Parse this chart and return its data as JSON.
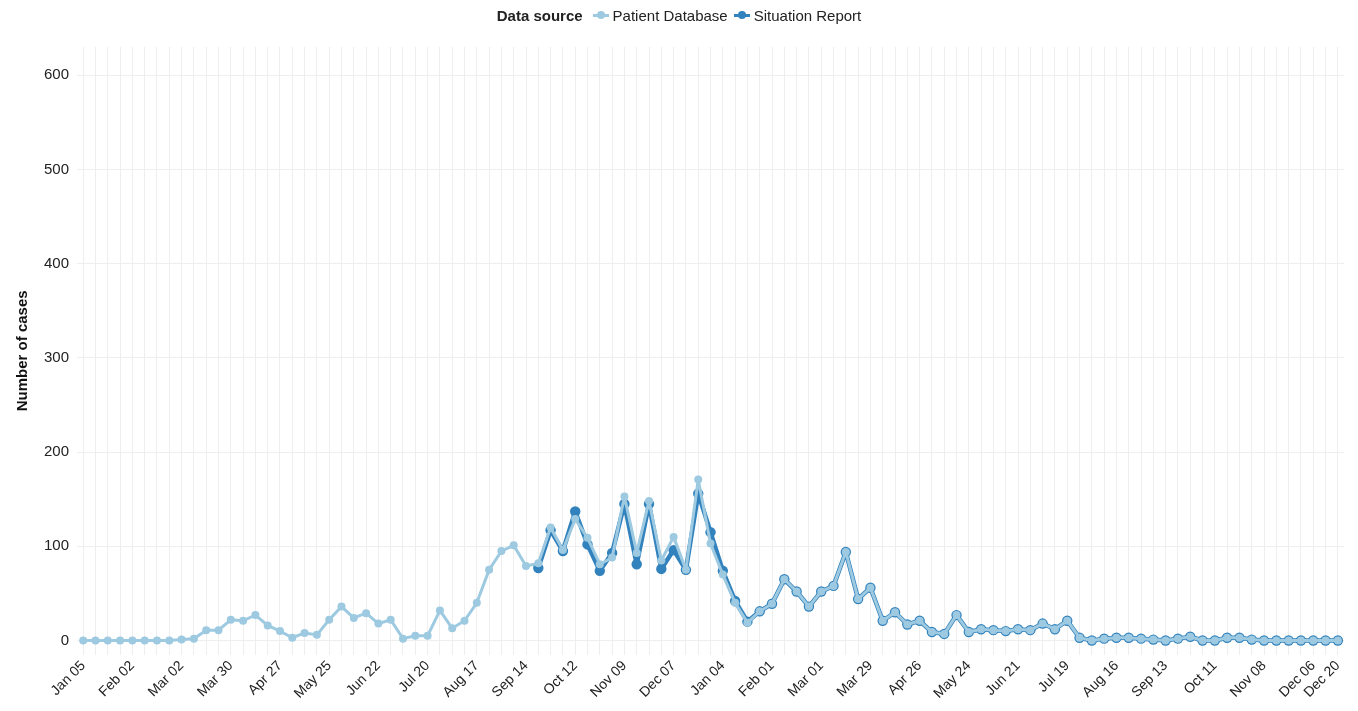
{
  "chart_data": {
    "type": "line",
    "ylabel": "Number of cases",
    "legend_title": "Data source",
    "legend": "top",
    "grid": true,
    "marker": "circle",
    "line_style": "solid",
    "categories": [
      "Jan 05",
      null,
      null,
      null,
      "Feb 02",
      null,
      null,
      null,
      "Mar 02",
      null,
      null,
      null,
      "Mar 30",
      null,
      null,
      null,
      "Apr 27",
      null,
      null,
      null,
      "May 25",
      null,
      null,
      null,
      "Jun 22",
      null,
      null,
      null,
      "Jul 20",
      null,
      null,
      null,
      "Aug 17",
      null,
      null,
      null,
      "Sep 14",
      null,
      null,
      null,
      "Oct 12",
      null,
      null,
      null,
      "Nov 09",
      null,
      null,
      null,
      "Dec 07",
      null,
      null,
      null,
      "Jan 04",
      null,
      null,
      null,
      "Feb 01",
      null,
      null,
      null,
      "Mar 01",
      null,
      null,
      null,
      "Mar 29",
      null,
      null,
      null,
      "Apr 26",
      null,
      null,
      null,
      "May 24",
      null,
      null,
      null,
      "Jun 21",
      null,
      null,
      null,
      "Jul 19",
      null,
      null,
      null,
      "Aug 16",
      null,
      null,
      null,
      "Sep 13",
      null,
      null,
      null,
      "Oct 11",
      null,
      null,
      null,
      "Nov 08",
      null,
      null,
      null,
      "Dec 06",
      null,
      "Dec 20"
    ],
    "series": [
      {
        "name": "Patient Database",
        "color": "#9ecae1",
        "values": [
          0,
          0,
          0,
          0,
          0,
          0,
          0,
          0,
          1,
          2,
          11,
          11,
          22,
          21,
          27,
          16,
          10,
          3,
          8,
          6,
          22,
          36,
          24,
          29,
          18,
          22,
          2,
          5,
          5,
          32,
          13,
          21,
          40,
          75,
          95,
          101,
          79,
          82,
          120,
          96,
          129,
          109,
          81,
          88,
          153,
          93,
          148,
          85,
          110,
          75,
          171,
          103,
          70,
          40,
          19,
          31,
          39,
          65,
          52,
          36,
          52,
          58,
          94,
          44,
          56,
          21,
          30,
          17,
          21,
          9,
          7,
          27,
          9,
          12,
          11,
          10,
          12,
          11,
          18,
          12,
          21,
          3,
          0,
          2,
          3,
          3,
          2,
          1,
          0,
          2,
          4,
          0,
          0,
          3,
          3,
          1,
          0,
          0,
          0,
          0,
          0,
          0,
          0
        ]
      },
      {
        "name": "Situation Report",
        "color": "#3182bd",
        "values": [
          null,
          null,
          null,
          null,
          null,
          null,
          null,
          null,
          null,
          null,
          null,
          null,
          null,
          null,
          null,
          null,
          null,
          null,
          null,
          null,
          null,
          null,
          null,
          null,
          null,
          null,
          null,
          null,
          null,
          null,
          null,
          null,
          null,
          null,
          null,
          null,
          null,
          77,
          117,
          95,
          137,
          102,
          74,
          93,
          145,
          81,
          145,
          76,
          96,
          75,
          156,
          115,
          74,
          42,
          20,
          31,
          39,
          65,
          52,
          36,
          52,
          58,
          94,
          44,
          56,
          21,
          30,
          17,
          21,
          9,
          7,
          27,
          9,
          12,
          11,
          10,
          12,
          11,
          18,
          12,
          21,
          3,
          0,
          2,
          3,
          3,
          2,
          1,
          0,
          2,
          4,
          0,
          0,
          3,
          3,
          1,
          0,
          0,
          0,
          0,
          0,
          0,
          0
        ]
      }
    ],
    "ylim": [
      -15,
      630
    ],
    "yticks": [
      0,
      100,
      200,
      300,
      400,
      500,
      600
    ]
  }
}
